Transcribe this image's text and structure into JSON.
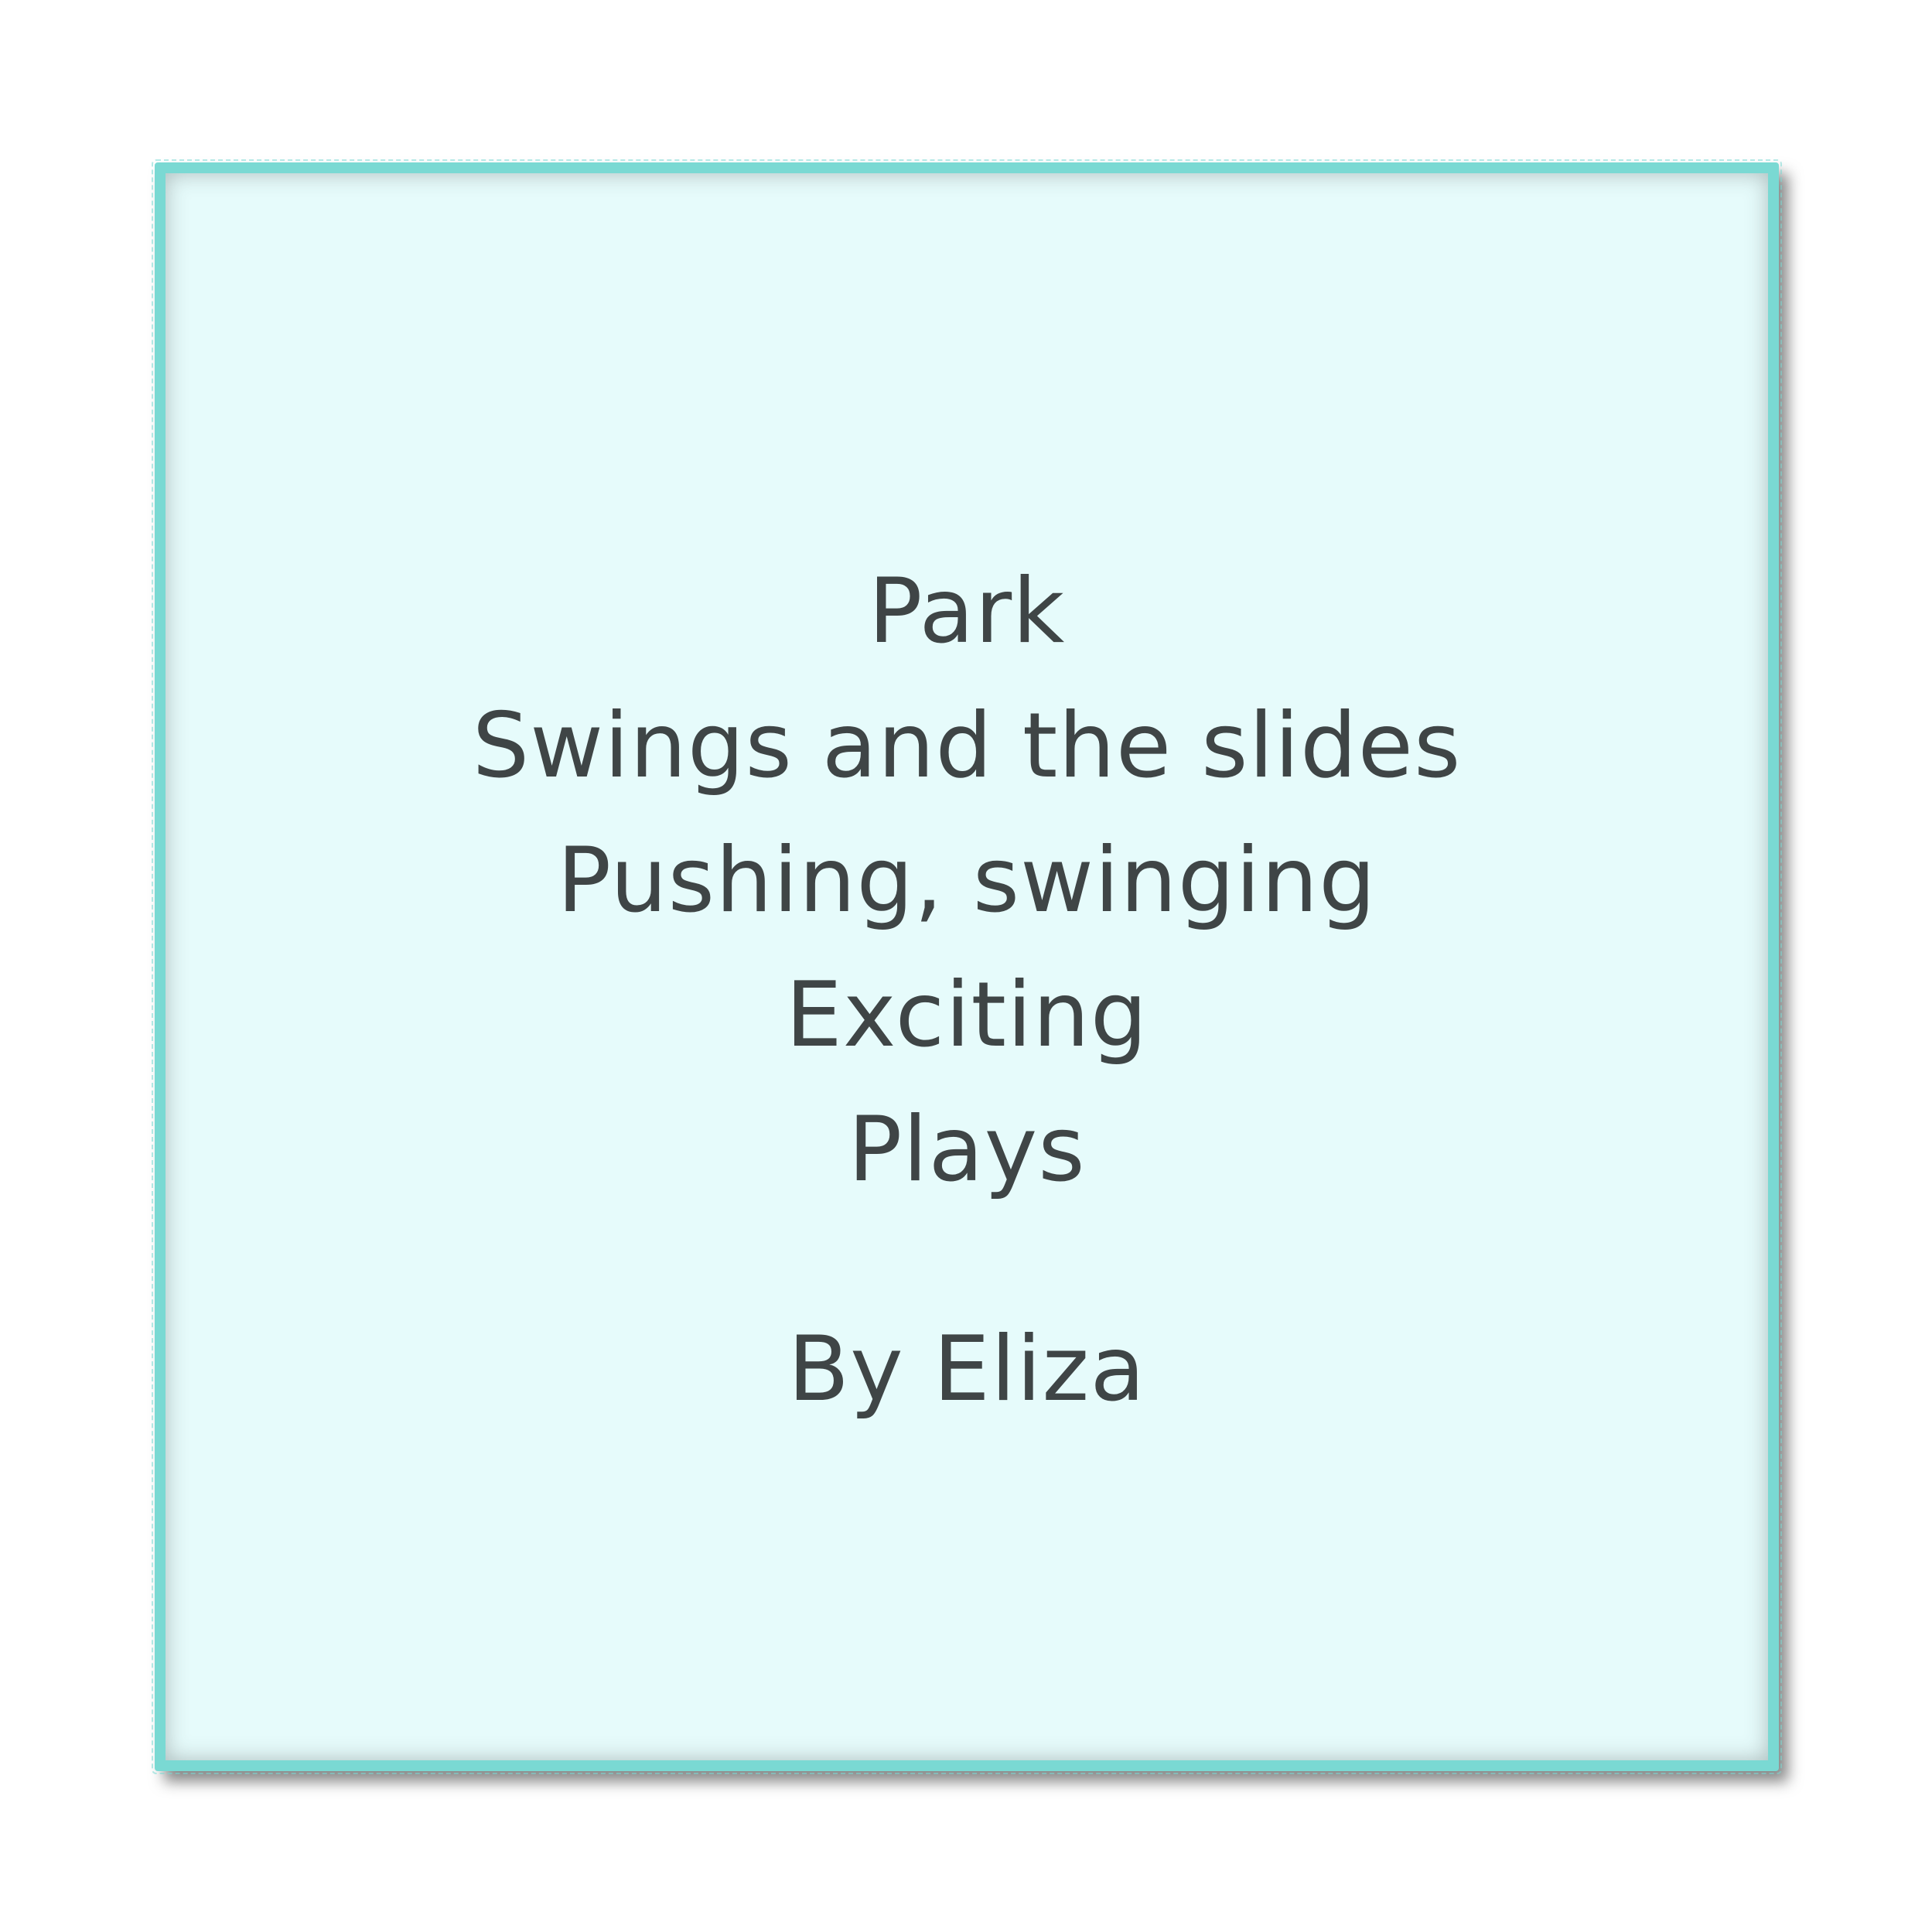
{
  "poem": {
    "lines": [
      "Park",
      "Swings and the slides",
      "Pushing, swinging",
      "Exciting",
      "Plays"
    ],
    "author": "By Eliza"
  },
  "colors": {
    "frame_border": "#7ad9d3",
    "frame_fill": "#e6fbfb",
    "text": "#3f4546"
  }
}
